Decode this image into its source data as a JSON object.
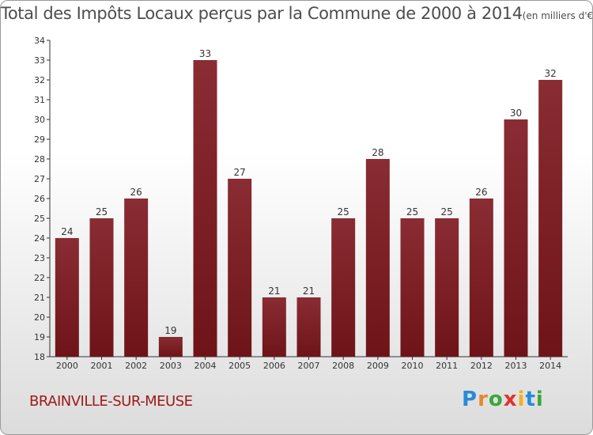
{
  "chart_data": {
    "type": "bar",
    "title": "Total des Impôts Locaux perçus par la Commune de 2000 à 2014",
    "unit_label": "(en milliers d'€)",
    "categories": [
      "2000",
      "2001",
      "2002",
      "2003",
      "2004",
      "2005",
      "2006",
      "2007",
      "2008",
      "2009",
      "2010",
      "2011",
      "2012",
      "2013",
      "2014"
    ],
    "values": [
      24,
      25,
      26,
      19,
      33,
      27,
      21,
      21,
      25,
      28,
      25,
      25,
      26,
      30,
      32
    ],
    "ylim": [
      18,
      34
    ],
    "yticks": [
      18,
      19,
      20,
      21,
      22,
      23,
      24,
      25,
      26,
      27,
      28,
      29,
      30,
      31,
      32,
      33,
      34
    ],
    "xlabel": "",
    "ylabel": "",
    "bar_color": "#6e1418",
    "grid": false
  },
  "commune_name": "BRAINVILLE-SUR-MEUSE",
  "logo": {
    "letters": [
      "P",
      "r",
      "o",
      "x",
      "i",
      "t",
      "i"
    ],
    "colors": [
      "#2a8ad8",
      "#e4892a",
      "#3aa83a",
      "#e0322e",
      "#f0b21a",
      "#2a8ad8",
      "#3aa83a"
    ]
  }
}
